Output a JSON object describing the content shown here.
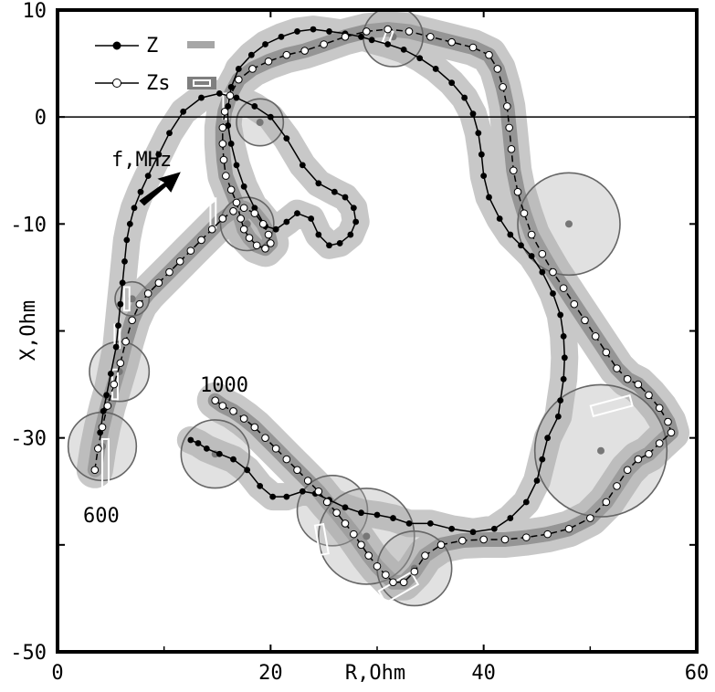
{
  "chart_data": {
    "type": "line",
    "xlabel": "R,Ohm",
    "ylabel": "X,Ohm",
    "xlim": [
      0,
      60
    ],
    "ylim": [
      -50,
      10
    ],
    "x_ticks": [
      0,
      20,
      40,
      60
    ],
    "y_ticks": [
      10,
      0,
      -10,
      -30,
      -50
    ],
    "grid": false,
    "legend_position": "top-left",
    "annotations": {
      "freq_label": "f,MHz",
      "start_freq": "600",
      "end_freq": "1000"
    },
    "series": [
      {
        "name": "Z",
        "marker": "filled-circle",
        "line": "solid",
        "legend_band_color": "#a6a6a6",
        "points": [
          [
            4.0,
            -29.5
          ],
          [
            4.3,
            -27.5
          ],
          [
            4.6,
            -26.0
          ],
          [
            5.0,
            -24.0
          ],
          [
            5.5,
            -21.5
          ],
          [
            5.7,
            -19.5
          ],
          [
            5.9,
            -17.5
          ],
          [
            6.1,
            -15.5
          ],
          [
            6.3,
            -13.5
          ],
          [
            6.5,
            -11.5
          ],
          [
            6.8,
            -10.0
          ],
          [
            7.2,
            -8.5
          ],
          [
            7.8,
            -7.0
          ],
          [
            8.5,
            -5.5
          ],
          [
            9.5,
            -3.5
          ],
          [
            10.5,
            -1.5
          ],
          [
            11.8,
            0.5
          ],
          [
            13.5,
            1.8
          ],
          [
            15.2,
            2.2
          ],
          [
            16.8,
            1.8
          ],
          [
            18.5,
            1.0
          ],
          [
            20.0,
            0.0
          ],
          [
            21.5,
            -2.0
          ],
          [
            23.0,
            -4.5
          ],
          [
            24.5,
            -6.2
          ],
          [
            26.0,
            -7.0
          ],
          [
            27.0,
            -7.5
          ],
          [
            27.8,
            -8.5
          ],
          [
            28.0,
            -9.8
          ],
          [
            27.5,
            -11.0
          ],
          [
            26.5,
            -11.8
          ],
          [
            25.5,
            -12.0
          ],
          [
            24.5,
            -11.0
          ],
          [
            23.8,
            -9.5
          ],
          [
            22.5,
            -9.0
          ],
          [
            21.5,
            -9.8
          ],
          [
            20.5,
            -10.5
          ],
          [
            19.5,
            -10.2
          ],
          [
            18.5,
            -8.5
          ],
          [
            17.5,
            -6.5
          ],
          [
            16.8,
            -4.5
          ],
          [
            16.3,
            -2.5
          ],
          [
            16.0,
            -0.8
          ],
          [
            16.0,
            1.0
          ],
          [
            16.3,
            2.8
          ],
          [
            17.0,
            4.5
          ],
          [
            18.2,
            5.8
          ],
          [
            19.5,
            6.8
          ],
          [
            21.0,
            7.5
          ],
          [
            22.5,
            8.0
          ],
          [
            24.0,
            8.2
          ],
          [
            25.5,
            8.0
          ],
          [
            27.0,
            7.8
          ],
          [
            28.5,
            7.5
          ],
          [
            29.5,
            7.2
          ],
          [
            31.0,
            6.8
          ],
          [
            32.5,
            6.3
          ],
          [
            34.0,
            5.5
          ],
          [
            35.5,
            4.5
          ],
          [
            37.0,
            3.2
          ],
          [
            38.2,
            1.8
          ],
          [
            39.0,
            0.3
          ],
          [
            39.5,
            -1.5
          ],
          [
            39.8,
            -3.5
          ],
          [
            40.0,
            -5.5
          ],
          [
            40.5,
            -7.5
          ],
          [
            41.5,
            -9.5
          ],
          [
            42.5,
            -11.0
          ],
          [
            43.5,
            -12.0
          ],
          [
            44.5,
            -13.0
          ],
          [
            45.5,
            -14.5
          ],
          [
            46.5,
            -16.5
          ],
          [
            47.2,
            -18.5
          ],
          [
            47.5,
            -20.5
          ],
          [
            47.6,
            -22.5
          ],
          [
            47.5,
            -24.5
          ],
          [
            47.2,
            -26.5
          ],
          [
            47.0,
            -28.0
          ],
          [
            46.0,
            -30.0
          ],
          [
            45.5,
            -32.0
          ],
          [
            45.0,
            -34.0
          ],
          [
            44.0,
            -36.0
          ],
          [
            42.5,
            -37.5
          ],
          [
            41.0,
            -38.5
          ],
          [
            39.0,
            -38.8
          ],
          [
            37.0,
            -38.5
          ],
          [
            35.0,
            -38.0
          ],
          [
            33.0,
            -38.0
          ],
          [
            31.5,
            -37.5
          ],
          [
            30.0,
            -37.2
          ],
          [
            28.5,
            -37.0
          ],
          [
            27.0,
            -36.5
          ],
          [
            25.5,
            -35.8
          ],
          [
            24.2,
            -35.2
          ],
          [
            23.0,
            -35.0
          ],
          [
            21.5,
            -35.5
          ],
          [
            20.2,
            -35.5
          ],
          [
            19.0,
            -34.5
          ],
          [
            17.8,
            -33.0
          ],
          [
            16.5,
            -32.0
          ],
          [
            15.2,
            -31.5
          ],
          [
            14.0,
            -31.0
          ],
          [
            13.2,
            -30.5
          ],
          [
            12.5,
            -30.2
          ]
        ]
      },
      {
        "name": "Zs",
        "marker": "open-circle",
        "line": "dashed",
        "legend_band_color": "#7f7f7f",
        "points": [
          [
            3.5,
            -33.0
          ],
          [
            3.8,
            -31.0
          ],
          [
            4.2,
            -29.0
          ],
          [
            4.7,
            -27.0
          ],
          [
            5.3,
            -25.0
          ],
          [
            5.9,
            -23.0
          ],
          [
            6.4,
            -21.0
          ],
          [
            7.0,
            -19.0
          ],
          [
            7.7,
            -17.5
          ],
          [
            8.5,
            -16.5
          ],
          [
            9.5,
            -15.5
          ],
          [
            10.5,
            -14.5
          ],
          [
            11.5,
            -13.5
          ],
          [
            12.5,
            -12.5
          ],
          [
            13.5,
            -11.5
          ],
          [
            14.5,
            -10.5
          ],
          [
            15.5,
            -9.5
          ],
          [
            16.5,
            -8.8
          ],
          [
            17.5,
            -8.5
          ],
          [
            18.5,
            -9.0
          ],
          [
            19.3,
            -10.0
          ],
          [
            19.8,
            -11.0
          ],
          [
            20.0,
            -11.8
          ],
          [
            19.5,
            -12.3
          ],
          [
            18.7,
            -12.0
          ],
          [
            18.0,
            -11.3
          ],
          [
            17.5,
            -10.5
          ],
          [
            17.2,
            -9.5
          ],
          [
            16.8,
            -8.0
          ],
          [
            16.3,
            -6.8
          ],
          [
            15.8,
            -5.5
          ],
          [
            15.6,
            -4.0
          ],
          [
            15.5,
            -2.5
          ],
          [
            15.5,
            -1.0
          ],
          [
            15.7,
            0.5
          ],
          [
            16.2,
            2.0
          ],
          [
            17.0,
            3.5
          ],
          [
            18.3,
            4.5
          ],
          [
            19.8,
            5.2
          ],
          [
            21.5,
            5.8
          ],
          [
            23.2,
            6.2
          ],
          [
            25.0,
            6.8
          ],
          [
            27.0,
            7.5
          ],
          [
            29.0,
            8.0
          ],
          [
            31.0,
            8.2
          ],
          [
            33.0,
            8.0
          ],
          [
            35.0,
            7.5
          ],
          [
            37.0,
            7.0
          ],
          [
            39.0,
            6.5
          ],
          [
            40.5,
            5.8
          ],
          [
            41.3,
            4.5
          ],
          [
            41.8,
            2.8
          ],
          [
            42.2,
            1.0
          ],
          [
            42.4,
            -1.0
          ],
          [
            42.6,
            -3.0
          ],
          [
            42.8,
            -5.0
          ],
          [
            43.2,
            -7.0
          ],
          [
            43.8,
            -9.0
          ],
          [
            44.5,
            -11.0
          ],
          [
            45.5,
            -12.8
          ],
          [
            46.5,
            -14.5
          ],
          [
            47.5,
            -16.0
          ],
          [
            48.5,
            -17.5
          ],
          [
            49.5,
            -19.0
          ],
          [
            50.5,
            -20.5
          ],
          [
            51.5,
            -22.0
          ],
          [
            52.5,
            -23.5
          ],
          [
            53.5,
            -24.5
          ],
          [
            54.5,
            -25.0
          ],
          [
            55.5,
            -26.0
          ],
          [
            56.5,
            -27.2
          ],
          [
            57.3,
            -28.5
          ],
          [
            57.6,
            -29.5
          ],
          [
            56.5,
            -30.5
          ],
          [
            55.5,
            -31.5
          ],
          [
            54.5,
            -32.0
          ],
          [
            53.5,
            -33.0
          ],
          [
            52.5,
            -34.5
          ],
          [
            51.5,
            -36.0
          ],
          [
            50.0,
            -37.5
          ],
          [
            48.0,
            -38.5
          ],
          [
            46.0,
            -39.0
          ],
          [
            44.0,
            -39.3
          ],
          [
            42.0,
            -39.5
          ],
          [
            40.0,
            -39.5
          ],
          [
            38.0,
            -39.6
          ],
          [
            36.0,
            -40.0
          ],
          [
            34.5,
            -41.0
          ],
          [
            33.5,
            -42.5
          ],
          [
            32.5,
            -43.5
          ],
          [
            31.5,
            -43.5
          ],
          [
            30.8,
            -42.8
          ],
          [
            30.0,
            -42.0
          ],
          [
            29.2,
            -41.0
          ],
          [
            28.5,
            -40.0
          ],
          [
            27.8,
            -39.0
          ],
          [
            27.0,
            -38.0
          ],
          [
            26.2,
            -37.0
          ],
          [
            25.3,
            -36.0
          ],
          [
            24.5,
            -35.0
          ],
          [
            23.5,
            -34.0
          ],
          [
            22.5,
            -33.0
          ],
          [
            21.5,
            -32.0
          ],
          [
            20.5,
            -31.0
          ],
          [
            19.5,
            -30.0
          ],
          [
            18.5,
            -29.0
          ],
          [
            17.5,
            -28.2
          ],
          [
            16.5,
            -27.5
          ],
          [
            15.5,
            -27.0
          ],
          [
            14.8,
            -26.5
          ]
        ]
      }
    ],
    "uncertainty": {
      "light_band_color": "#c8c8c8",
      "dark_band_color": "#8c8c8c",
      "circle_stroke": "#666666",
      "circles": [
        [
          4.2,
          -30.8,
          3.2
        ],
        [
          5.8,
          -23.8,
          2.8
        ],
        [
          7.0,
          -17.0,
          1.6
        ],
        [
          17.8,
          -10.0,
          2.5
        ],
        [
          19.0,
          -0.5,
          2.2
        ],
        [
          31.5,
          7.5,
          2.8
        ],
        [
          48.0,
          -10.0,
          4.8
        ],
        [
          51.0,
          -31.2,
          6.2
        ],
        [
          25.8,
          -36.8,
          3.3
        ],
        [
          29.0,
          -39.2,
          4.5
        ],
        [
          33.5,
          -42.2,
          3.5
        ],
        [
          14.8,
          -31.5,
          3.2
        ]
      ],
      "rects": [
        [
          4.5,
          -32.5,
          0.6,
          4.8,
          0
        ],
        [
          5.4,
          -25.0,
          0.5,
          2.8,
          0
        ],
        [
          5.6,
          -20.5,
          0.5,
          2.2,
          0
        ],
        [
          6.5,
          -17.0,
          0.5,
          2.2,
          0
        ],
        [
          14.6,
          -9.0,
          0.5,
          2.8,
          0
        ],
        [
          15.8,
          1.0,
          0.5,
          2.4,
          0
        ],
        [
          31.0,
          7.5,
          0.6,
          1.2,
          20
        ],
        [
          32.0,
          -44.0,
          3.5,
          1.3,
          -30
        ],
        [
          24.8,
          -39.5,
          0.8,
          2.8,
          -10
        ],
        [
          28.0,
          -30.0,
          0.6,
          4.0,
          0
        ],
        [
          52.0,
          -27.0,
          3.8,
          1.0,
          -15
        ]
      ]
    }
  }
}
